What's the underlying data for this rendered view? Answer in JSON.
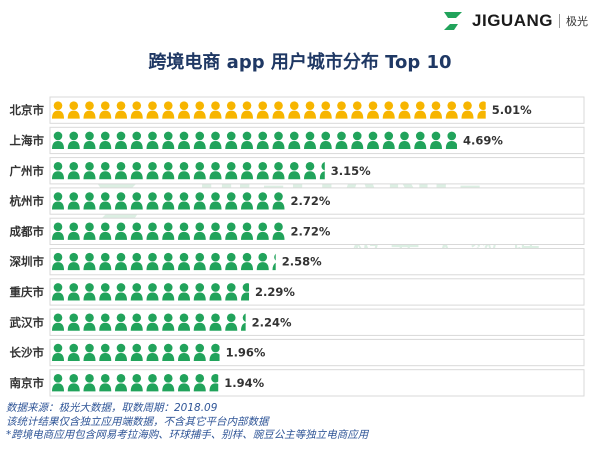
{
  "brand": {
    "name": "JIGUANG",
    "name_cn": "极光",
    "watermark_cn": "极光大数据"
  },
  "colors": {
    "highlight": "#f7b500",
    "base": "#21a35b",
    "title": "#1f3864",
    "footer": "#2f5597"
  },
  "chart_data": {
    "type": "bar",
    "orientation": "horizontal",
    "title": "跨境电商 app 用户城市分布 Top 10",
    "categories": [
      "北京市",
      "上海市",
      "广州市",
      "杭州市",
      "成都市",
      "深圳市",
      "重庆市",
      "武汉市",
      "长沙市",
      "南京市"
    ],
    "values": [
      5.01,
      4.69,
      3.15,
      2.72,
      2.72,
      2.58,
      2.29,
      2.24,
      1.96,
      1.94
    ],
    "value_labels": [
      "5.01%",
      "4.69%",
      "3.15%",
      "2.72%",
      "2.72%",
      "2.58%",
      "2.29%",
      "2.24%",
      "1.96%",
      "1.94%"
    ],
    "unit": "%",
    "mark": "person-icon",
    "highlight_index": 0
  },
  "footer": {
    "line1": "数据来源：极光大数据，取数周期：2018.09",
    "line2": "该统计结果仅含独立应用端数据，不含其它平台内部数据",
    "line3": "*跨境电商应用包含网易考拉海购、环球捕手、别样、豌豆公主等独立电商应用"
  }
}
